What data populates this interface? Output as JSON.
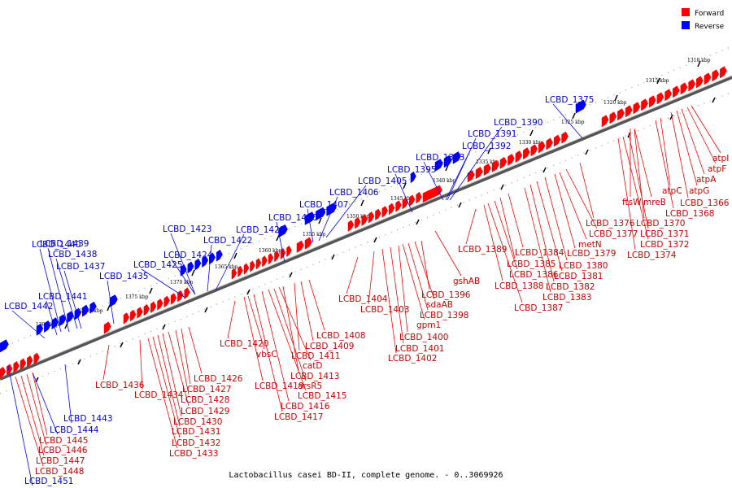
{
  "legend": {
    "items": [
      {
        "label": "Forward",
        "color": "#ff0000"
      },
      {
        "label": "Reverse",
        "color": "#0000ff"
      }
    ]
  },
  "caption": "Lactobacillus casei BD-II, complete genome. - 0..3069926",
  "colors": {
    "forward": "#ff0000",
    "reverse": "#0000ff",
    "forward_label": "#cc0000",
    "reverse_label": "#0000cc"
  },
  "scale": {
    "tick_labels": [
      "1310 kbp",
      "1315 kbp",
      "1320 kbp",
      "1325 kbp",
      "1330 kbp",
      "1335 kbp",
      "1340 kbp",
      "1345 kbp",
      "1350 kbp",
      "1355 kbp",
      "1360 kbp",
      "1365 kbp",
      "1370 kbp",
      "1375 kbp",
      "1380 kbp",
      "1385 kbp"
    ]
  },
  "genes": {
    "reverse": [
      "LCBD_1375",
      "LCBD_1390",
      "LCBD_1391",
      "LCBD_1392",
      "LCBD_1393",
      "LCBD_1395",
      "LCBD_1405",
      "LCBD_1406",
      "LCBD_1407",
      "LCBD_1410",
      "LCBD_1421",
      "LCBD_1422",
      "LCBD_1423",
      "LCBD_1424",
      "LCBD_1425",
      "LCBD_1435",
      "LCBD_1437",
      "LCBD_1438",
      "LCBD_1439",
      "LCBD_1440",
      "LCBD_1441",
      "LCBD_1442",
      "LCBD_1443",
      "LCBD_1444",
      "LCBD_1451"
    ],
    "forward_right": [
      "atpI",
      "atpF",
      "atpA",
      "atpG",
      "LCBD_1366",
      "atpC",
      "LCBD_1368",
      "ftsW",
      "mreB",
      "LCBD_1370",
      "LCBD_1371",
      "LCBD_1372",
      "LCBD_1374",
      "LCBD_1376",
      "LCBD_1377",
      "metN",
      "LCBD_1379",
      "LCBD_1380",
      "LCBD_1381",
      "LCBD_1382",
      "LCBD_1383",
      "LCBD_1384",
      "LCBD_1385",
      "LCBD_1386",
      "LCBD_1387",
      "LCBD_1388",
      "LCBD_1389",
      "gshAB"
    ],
    "forward_mid": [
      "LCBD_1396",
      "sdaAB",
      "LCBD_1398",
      "gpm1",
      "LCBD_1400",
      "LCBD_1401",
      "LCBD_1402",
      "LCBD_1403",
      "LCBD_1404",
      "LCBD_1408",
      "LCBD_1409",
      "LCBD_1411",
      "LCBD_1413",
      "catD",
      "arsR5",
      "LCBD_1415",
      "LCBD_1416",
      "LCBD_1417",
      "vbsC",
      "LCBD_1419",
      "LCBD_1420"
    ],
    "forward_left": [
      "LCBD_1426",
      "LCBD_1427",
      "LCBD_1428",
      "LCBD_1429",
      "LCBD_1430",
      "LCBD_1431",
      "LCBD_1432",
      "LCBD_1433",
      "LCBD_1434",
      "LCBD_1436",
      "LCBD_1445",
      "LCBD_1446",
      "LCBD_1447",
      "LCBD_1448"
    ]
  }
}
